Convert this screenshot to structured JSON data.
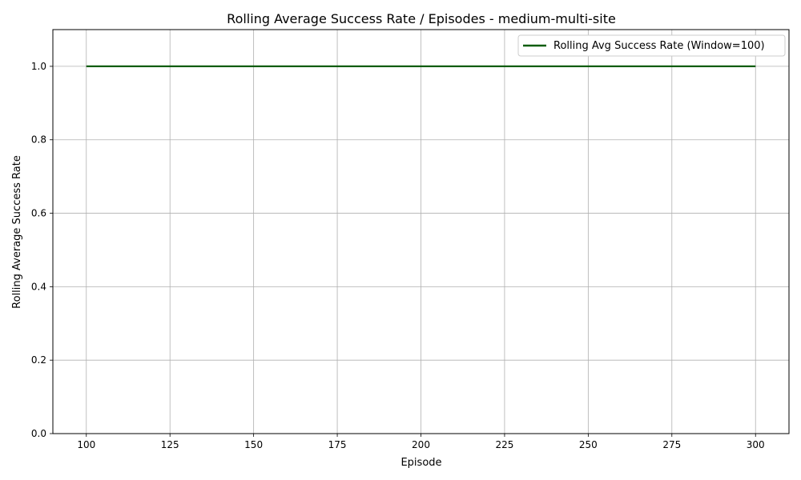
{
  "chart_data": {
    "type": "line",
    "title": "Rolling Average Success Rate / Episodes - medium-multi-site",
    "xlabel": "Episode",
    "ylabel": "Rolling Average Success Rate",
    "xlim": [
      90,
      310
    ],
    "ylim": [
      0.0,
      1.1
    ],
    "x_ticks": [
      100,
      125,
      150,
      175,
      200,
      225,
      250,
      275,
      300
    ],
    "y_ticks": [
      0.0,
      0.2,
      0.4,
      0.6,
      0.8,
      1.0
    ],
    "x_tick_labels": [
      "100",
      "125",
      "150",
      "175",
      "200",
      "225",
      "250",
      "275",
      "300"
    ],
    "y_tick_labels": [
      "0.0",
      "0.2",
      "0.4",
      "0.6",
      "0.8",
      "1.0"
    ],
    "grid": true,
    "legend_position": "top-right",
    "series": [
      {
        "name": "Rolling Avg Success Rate (Window=100)",
        "color": "#0b5d0b",
        "x": [
          100,
          300
        ],
        "y": [
          1.0,
          1.0
        ]
      }
    ]
  }
}
